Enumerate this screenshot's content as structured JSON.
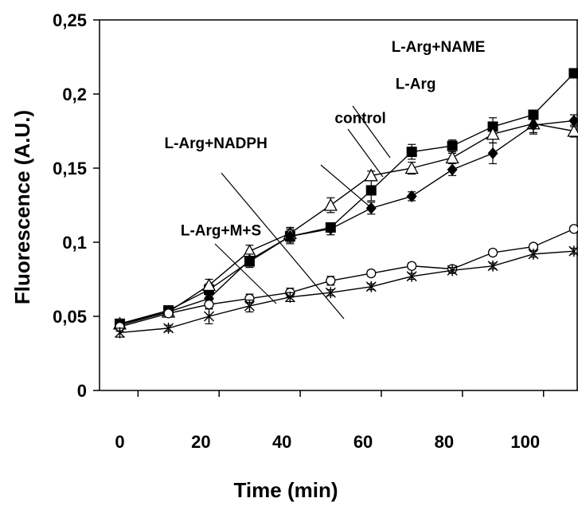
{
  "chart_data": {
    "type": "line",
    "title": "",
    "xlabel": "Time (min)",
    "ylabel": "Fluorescence (A.U.)",
    "xlim": [
      -5,
      113
    ],
    "ylim": [
      0,
      0.25
    ],
    "x_ticks": [
      0,
      20,
      40,
      60,
      80,
      100
    ],
    "x_tick_labels": [
      "0",
      "20",
      "40",
      "60",
      "80",
      "100"
    ],
    "y_ticks": [
      0,
      0.05,
      0.1,
      0.15,
      0.2,
      0.25
    ],
    "y_tick_labels": [
      "0",
      "0,05",
      "0,1",
      "0,15",
      "0,2",
      "0,25"
    ],
    "grid": false,
    "legend": "none",
    "x": [
      0,
      12,
      22,
      32,
      42,
      52,
      62,
      72,
      82,
      92,
      102,
      112
    ],
    "series": [
      {
        "name": "L-Arg+NAME",
        "marker": "filled-square",
        "values": [
          0.045,
          0.054,
          0.068,
          0.087,
          0.104,
          0.11,
          0.135,
          0.161,
          0.165,
          0.178,
          0.186,
          0.214
        ],
        "errors": [
          0.003,
          0.003,
          0.004,
          0.004,
          0.004,
          0.003,
          0.007,
          0.005,
          0.004,
          0.006,
          0.003,
          0.003
        ]
      },
      {
        "name": "L-Arg",
        "marker": "open-triangle",
        "values": [
          0.045,
          0.053,
          0.071,
          0.094,
          0.106,
          0.125,
          0.145,
          0.15,
          0.157,
          0.173,
          0.18,
          0.175
        ],
        "errors": [
          0.003,
          0.003,
          0.004,
          0.004,
          0.004,
          0.005,
          0.003,
          0.004,
          0.003,
          0.006,
          0.007,
          0.004
        ]
      },
      {
        "name": "control",
        "marker": "filled-diamond",
        "values": [
          0.044,
          0.053,
          0.062,
          0.088,
          0.104,
          0.109,
          0.123,
          0.131,
          0.149,
          0.16,
          0.179,
          0.182
        ],
        "errors": [
          0.003,
          0.003,
          0.005,
          0.004,
          0.005,
          0.004,
          0.004,
          0.003,
          0.004,
          0.007,
          0.005,
          0.004
        ]
      },
      {
        "name": "L-Arg+NADPH",
        "marker": "open-circle",
        "values": [
          0.043,
          0.052,
          0.058,
          0.062,
          0.066,
          0.074,
          0.079,
          0.084,
          0.082,
          0.093,
          0.097,
          0.109
        ],
        "errors": [
          0.003,
          0.002,
          0.003,
          0.003,
          0.003,
          0.003,
          0.002,
          0.002,
          0.002,
          0.002,
          0.002,
          0.002
        ]
      },
      {
        "name": "L-Arg+M+S",
        "marker": "asterisk",
        "values": [
          0.039,
          0.042,
          0.05,
          0.057,
          0.063,
          0.066,
          0.07,
          0.077,
          0.081,
          0.084,
          0.092,
          0.094
        ],
        "errors": [
          0.003,
          0.002,
          0.005,
          0.004,
          0.003,
          0.002,
          0.002,
          0.002,
          0.002,
          0.002,
          0.002,
          0.002
        ]
      }
    ],
    "annotations": [
      {
        "text": "L-Arg+NAME",
        "series": "L-Arg+NAME",
        "point_x": 72,
        "text_x": 67,
        "text_y": 0.2285,
        "point_y": 0.161
      },
      {
        "text": "L-Arg",
        "series": "L-Arg",
        "point_x": 62,
        "text_x": 68,
        "text_y": 0.2035,
        "point_y": 0.145
      },
      {
        "text": "control",
        "series": "control",
        "point_x": 72,
        "text_x": 53,
        "text_y": 0.1805,
        "point_y": 0.131
      },
      {
        "text": "L-Arg+NADPH",
        "series": "L-Arg+NADPH",
        "point_x": 52,
        "text_x": 11,
        "text_y": 0.1635,
        "point_y": 0.074
      },
      {
        "text": "L-Arg+M+S",
        "series": "L-Arg+M+S",
        "point_x": 32,
        "text_x": 15,
        "text_y": 0.1045,
        "point_y": 0.057
      }
    ]
  }
}
